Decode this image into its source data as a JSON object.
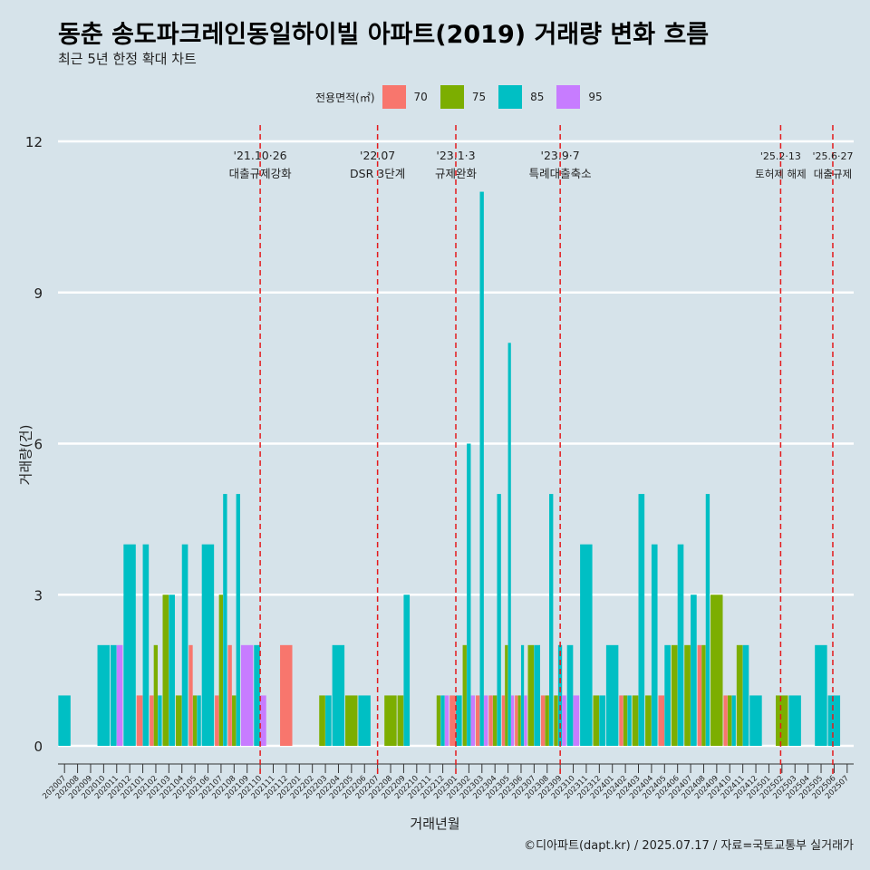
{
  "title": "동춘 송도파크레인동일하이빌 아파트(2019) 거래량 변화 흐름",
  "subtitle": "최근 5년 한정 확대 차트",
  "caption": "©디아파트(dapt.kr) / 2025.07.17 / 자료=국토교통부 실거래가",
  "colors": {
    "background": "#d6e3ea",
    "area_70": "#f8766d",
    "area_75": "#7cae00",
    "area_85": "#00bfc4",
    "area_95": "#c77cff",
    "event_line": "#e41a1c",
    "grid": "#ffffff"
  },
  "legend": {
    "title": "전용면적(㎡)",
    "items": [
      {
        "label": "70",
        "color": "#f8766d"
      },
      {
        "label": "75",
        "color": "#7cae00"
      },
      {
        "label": "85",
        "color": "#00bfc4"
      },
      {
        "label": "95",
        "color": "#c77cff"
      }
    ]
  },
  "chart_data": {
    "type": "bar",
    "title": "동춘 송도파크레인동일하이빌 아파트(2019) 거래량 변화 흐름",
    "subtitle": "최근 5년 한정 확대 차트",
    "xlabel": "거래년월",
    "ylabel": "거래량(건)",
    "ylim": [
      0,
      12
    ],
    "yticks": [
      0,
      3,
      6,
      9,
      12
    ],
    "categories": [
      "202007",
      "202008",
      "202009",
      "202010",
      "202011",
      "202012",
      "202101",
      "202102",
      "202103",
      "202104",
      "202105",
      "202106",
      "202107",
      "202108",
      "202109",
      "202110",
      "202111",
      "202112",
      "202201",
      "202202",
      "202203",
      "202204",
      "202205",
      "202206",
      "202207",
      "202208",
      "202209",
      "202210",
      "202211",
      "202212",
      "202301",
      "202302",
      "202303",
      "202304",
      "202305",
      "202306",
      "202307",
      "202308",
      "202309",
      "202310",
      "202311",
      "202312",
      "202401",
      "202402",
      "202403",
      "202404",
      "202405",
      "202406",
      "202407",
      "202408",
      "202409",
      "202410",
      "202411",
      "202412",
      "202501",
      "202502",
      "202503",
      "202504",
      "202505",
      "202506",
      "202507"
    ],
    "series": [
      {
        "name": "70",
        "values": [
          0,
          0,
          0,
          0,
          0,
          0,
          1,
          1,
          0,
          0,
          2,
          0,
          1,
          2,
          0,
          0,
          0,
          2,
          0,
          0,
          0,
          0,
          0,
          0,
          0,
          0,
          0,
          0,
          0,
          0,
          1,
          0,
          1,
          1,
          1,
          1,
          0,
          1,
          0,
          0,
          0,
          0,
          0,
          1,
          0,
          0,
          1,
          0,
          0,
          2,
          0,
          1,
          0,
          0,
          0,
          0,
          0,
          0,
          0,
          0,
          0
        ]
      },
      {
        "name": "75",
        "values": [
          0,
          0,
          0,
          0,
          0,
          0,
          0,
          2,
          3,
          1,
          1,
          0,
          3,
          1,
          0,
          0,
          0,
          0,
          0,
          0,
          1,
          0,
          1,
          0,
          0,
          1,
          1,
          0,
          0,
          1,
          0,
          2,
          0,
          1,
          2,
          1,
          2,
          1,
          1,
          0,
          0,
          1,
          0,
          1,
          1,
          1,
          0,
          2,
          2,
          2,
          3,
          1,
          2,
          0,
          0,
          1,
          0,
          0,
          0,
          0,
          0
        ]
      },
      {
        "name": "85",
        "values": [
          1,
          0,
          0,
          2,
          2,
          4,
          4,
          1,
          3,
          4,
          1,
          4,
          5,
          5,
          0,
          2,
          0,
          0,
          0,
          0,
          1,
          2,
          0,
          1,
          0,
          0,
          3,
          0,
          0,
          1,
          1,
          6,
          11,
          5,
          8,
          2,
          2,
          5,
          2,
          2,
          4,
          1,
          2,
          1,
          5,
          4,
          2,
          4,
          3,
          5,
          0,
          1,
          2,
          1,
          0,
          0,
          1,
          0,
          2,
          1,
          0
        ]
      },
      {
        "name": "95",
        "values": [
          0,
          0,
          0,
          0,
          2,
          0,
          0,
          0,
          0,
          0,
          0,
          0,
          0,
          0,
          2,
          1,
          0,
          0,
          0,
          0,
          0,
          0,
          0,
          0,
          0,
          0,
          0,
          0,
          0,
          1,
          0,
          1,
          1,
          0,
          1,
          1,
          0,
          0,
          1,
          1,
          0,
          0,
          0,
          0,
          0,
          0,
          0,
          0,
          0,
          0,
          0,
          0,
          0,
          0,
          0,
          0,
          0,
          0,
          0,
          0,
          0
        ]
      }
    ],
    "events": [
      {
        "date": "'21.10·26",
        "label": "대출규제강화",
        "position": 15.5
      },
      {
        "date": "'22.07",
        "label": "DSR 3단계",
        "position": 24.5
      },
      {
        "date": "'23.1·3",
        "label": "규제완화",
        "position": 30.5
      },
      {
        "date": "'23.9·7",
        "label": "특례대출축소",
        "position": 38.5
      },
      {
        "date": "'25.2·13",
        "label": "토허제 해제",
        "position": 55.4
      },
      {
        "date": "'25.6·27",
        "label": "대출규제",
        "position": 59.4
      }
    ]
  }
}
